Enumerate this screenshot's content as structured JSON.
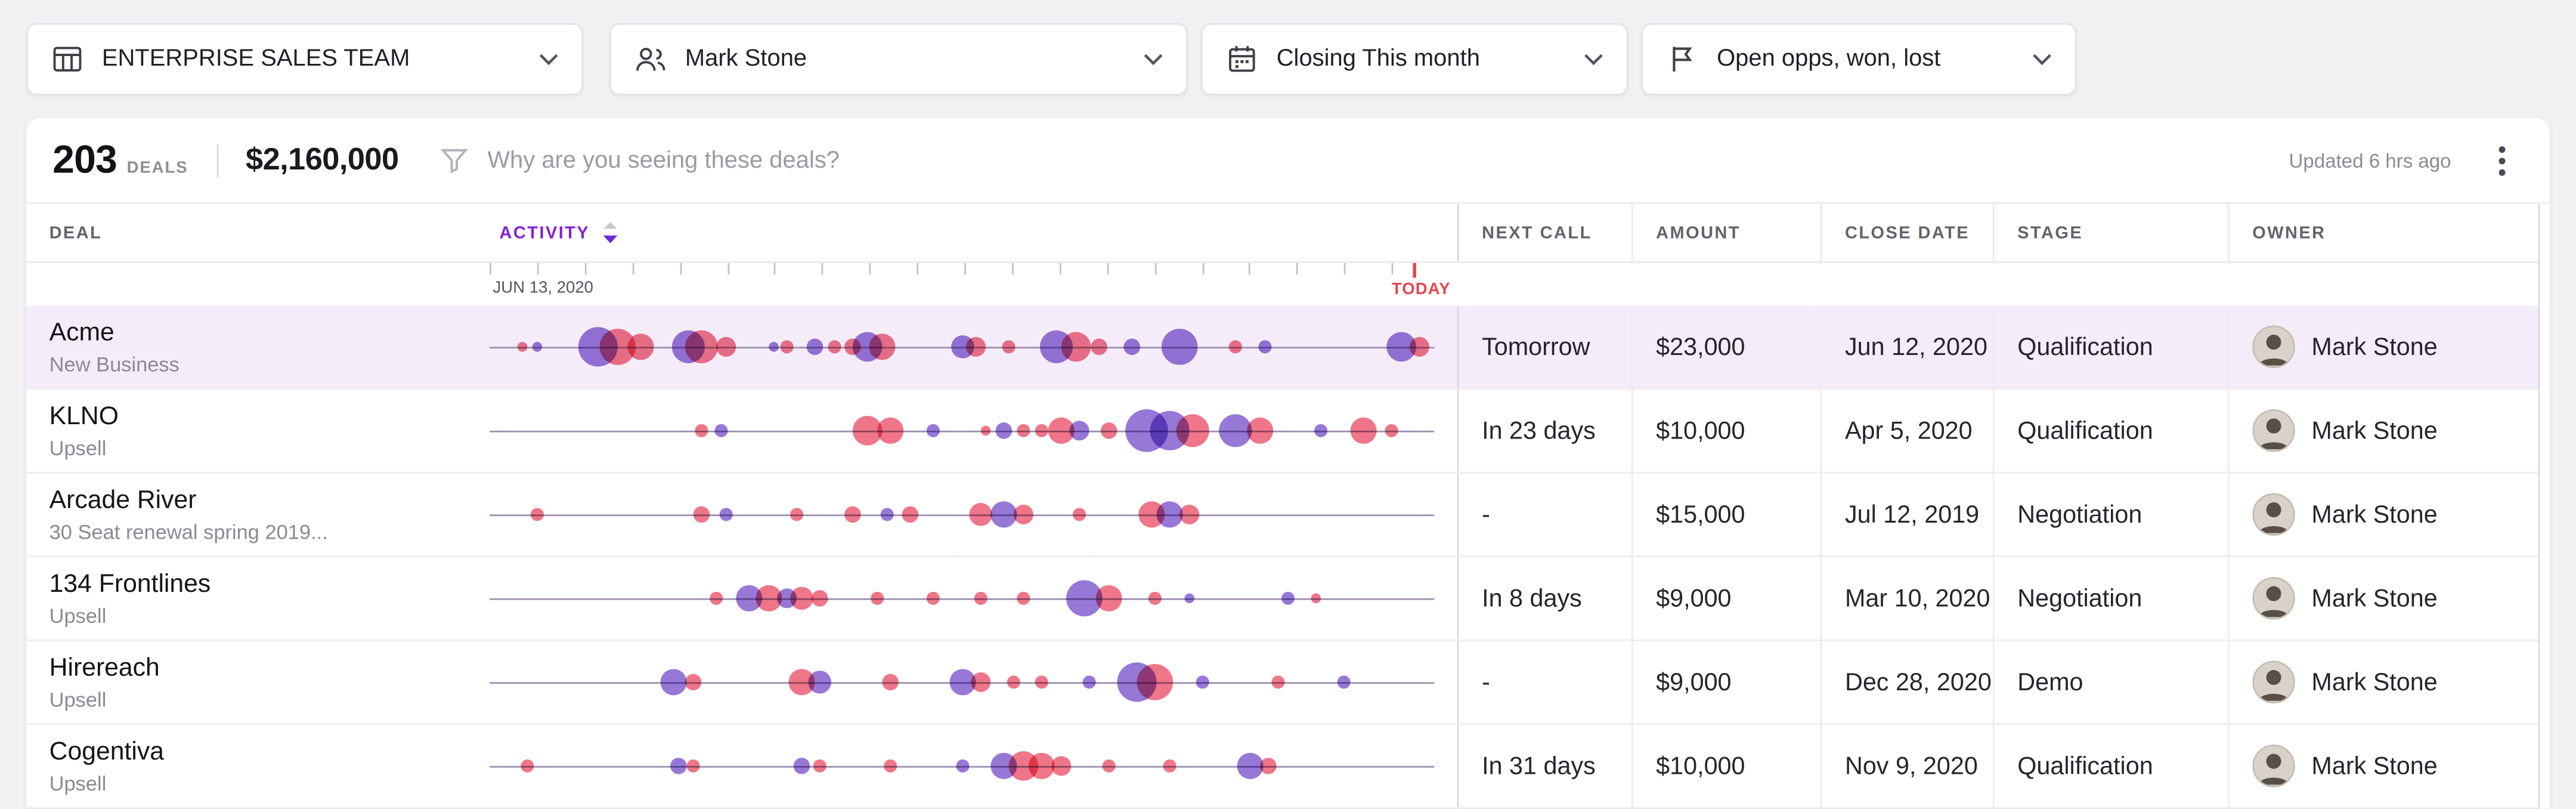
{
  "filters": [
    {
      "label": "ENTERPRISE SALES TEAM",
      "icon": "table-icon"
    },
    {
      "label": "Mark Stone",
      "icon": "people-icon"
    },
    {
      "label": "Closing This month",
      "icon": "calendar-icon"
    },
    {
      "label": "Open opps, won, lost",
      "icon": "flag-icon"
    }
  ],
  "summary": {
    "count": "203",
    "count_label": "Deals",
    "amount": "$2,160,000",
    "filter_hint": "Why are you seeing these deals?",
    "updated": "Updated 6 hrs ago"
  },
  "table": {
    "columns": [
      "DEAL",
      "ACTIVITY",
      "NEXT CALL",
      "AMOUNT",
      "CLOSE DATE",
      "STAGE",
      "OWNER"
    ],
    "axis": {
      "start_label": "JUN 13, 2020",
      "today_label": "TODAY",
      "tick_count": 20,
      "tick_span": 0.955,
      "today_fraction": 0.978
    },
    "rows": [
      {
        "deal": "Acme",
        "deal_sub": "New Business",
        "next_call": "Tomorrow",
        "amount": "$23,000",
        "close_date": "Jun 12, 2020",
        "stage": "Qualification",
        "owner": "Mark Stone",
        "selected": true,
        "bubbles": [
          [
            0.035,
            3,
            "r"
          ],
          [
            0.05,
            3,
            "p"
          ],
          [
            0.115,
            12,
            "p"
          ],
          [
            0.135,
            11,
            "r"
          ],
          [
            0.16,
            8,
            "r"
          ],
          [
            0.21,
            10,
            "p"
          ],
          [
            0.225,
            10,
            "r"
          ],
          [
            0.25,
            6,
            "r"
          ],
          [
            0.3,
            3,
            "p"
          ],
          [
            0.315,
            4,
            "r"
          ],
          [
            0.345,
            5,
            "p"
          ],
          [
            0.365,
            4,
            "r"
          ],
          [
            0.385,
            5,
            "r"
          ],
          [
            0.4,
            9,
            "p"
          ],
          [
            0.415,
            8,
            "r"
          ],
          [
            0.5,
            7,
            "p"
          ],
          [
            0.515,
            6,
            "r"
          ],
          [
            0.55,
            4,
            "r"
          ],
          [
            0.6,
            10,
            "p"
          ],
          [
            0.62,
            9,
            "r"
          ],
          [
            0.645,
            5,
            "r"
          ],
          [
            0.68,
            5,
            "p"
          ],
          [
            0.73,
            11,
            "p"
          ],
          [
            0.79,
            4,
            "r"
          ],
          [
            0.82,
            4,
            "p"
          ],
          [
            0.965,
            9,
            "p"
          ],
          [
            0.985,
            6,
            "r"
          ]
        ]
      },
      {
        "deal": "KLNO",
        "deal_sub": "Upsell",
        "next_call": "In 23 days",
        "amount": "$10,000",
        "close_date": "Apr 5, 2020",
        "stage": "Qualification",
        "owner": "Mark Stone",
        "selected": false,
        "bubbles": [
          [
            0.225,
            4,
            "r"
          ],
          [
            0.245,
            4,
            "p"
          ],
          [
            0.4,
            9,
            "r"
          ],
          [
            0.425,
            8,
            "r"
          ],
          [
            0.47,
            4,
            "p"
          ],
          [
            0.525,
            3,
            "r"
          ],
          [
            0.545,
            5,
            "p"
          ],
          [
            0.565,
            4,
            "r"
          ],
          [
            0.585,
            4,
            "r"
          ],
          [
            0.605,
            8,
            "r"
          ],
          [
            0.625,
            6,
            "p"
          ],
          [
            0.655,
            5,
            "r"
          ],
          [
            0.695,
            13,
            "p"
          ],
          [
            0.72,
            12,
            "p"
          ],
          [
            0.745,
            10,
            "r"
          ],
          [
            0.79,
            10,
            "p"
          ],
          [
            0.815,
            8,
            "r"
          ],
          [
            0.88,
            4,
            "p"
          ],
          [
            0.925,
            8,
            "r"
          ],
          [
            0.955,
            4,
            "r"
          ]
        ]
      },
      {
        "deal": "Arcade River",
        "deal_sub": "30 Seat renewal spring 2019...",
        "next_call": "-",
        "amount": "$15,000",
        "close_date": "Jul 12, 2019",
        "stage": "Negotiation",
        "owner": "Mark Stone",
        "selected": false,
        "bubbles": [
          [
            0.05,
            4,
            "r"
          ],
          [
            0.225,
            5,
            "r"
          ],
          [
            0.25,
            4,
            "p"
          ],
          [
            0.325,
            4,
            "r"
          ],
          [
            0.385,
            5,
            "r"
          ],
          [
            0.42,
            4,
            "p"
          ],
          [
            0.445,
            5,
            "r"
          ],
          [
            0.52,
            7,
            "r"
          ],
          [
            0.545,
            8,
            "p"
          ],
          [
            0.565,
            6,
            "r"
          ],
          [
            0.625,
            4,
            "r"
          ],
          [
            0.7,
            8,
            "r"
          ],
          [
            0.72,
            8,
            "p"
          ],
          [
            0.74,
            6,
            "r"
          ]
        ]
      },
      {
        "deal": "134 Frontlines",
        "deal_sub": "Upsell",
        "next_call": "In 8 days",
        "amount": "$9,000",
        "close_date": "Mar 10, 2020",
        "stage": "Negotiation",
        "owner": "Mark Stone",
        "selected": false,
        "bubbles": [
          [
            0.24,
            4,
            "r"
          ],
          [
            0.275,
            8,
            "p"
          ],
          [
            0.295,
            8,
            "r"
          ],
          [
            0.315,
            6,
            "p"
          ],
          [
            0.33,
            7,
            "r"
          ],
          [
            0.35,
            5,
            "r"
          ],
          [
            0.41,
            4,
            "r"
          ],
          [
            0.47,
            4,
            "r"
          ],
          [
            0.52,
            4,
            "r"
          ],
          [
            0.565,
            4,
            "r"
          ],
          [
            0.63,
            11,
            "p"
          ],
          [
            0.655,
            8,
            "r"
          ],
          [
            0.705,
            4,
            "r"
          ],
          [
            0.74,
            3,
            "p"
          ],
          [
            0.845,
            4,
            "p"
          ],
          [
            0.875,
            3,
            "r"
          ]
        ]
      },
      {
        "deal": "Hirereach",
        "deal_sub": "Upsell",
        "next_call": "-",
        "amount": "$9,000",
        "close_date": "Dec 28, 2020",
        "stage": "Demo",
        "owner": "Mark Stone",
        "selected": false,
        "bubbles": [
          [
            0.195,
            8,
            "p"
          ],
          [
            0.215,
            5,
            "r"
          ],
          [
            0.33,
            8,
            "r"
          ],
          [
            0.35,
            7,
            "p"
          ],
          [
            0.425,
            5,
            "r"
          ],
          [
            0.5,
            8,
            "p"
          ],
          [
            0.52,
            6,
            "r"
          ],
          [
            0.555,
            4,
            "r"
          ],
          [
            0.585,
            4,
            "r"
          ],
          [
            0.635,
            4,
            "p"
          ],
          [
            0.685,
            12,
            "p"
          ],
          [
            0.705,
            11,
            "r"
          ],
          [
            0.755,
            4,
            "p"
          ],
          [
            0.835,
            4,
            "r"
          ],
          [
            0.905,
            4,
            "p"
          ]
        ]
      },
      {
        "deal": "Cogentiva",
        "deal_sub": "Upsell",
        "next_call": "In 31 days",
        "amount": "$10,000",
        "close_date": "Nov 9, 2020",
        "stage": "Qualification",
        "owner": "Mark Stone",
        "selected": false,
        "bubbles": [
          [
            0.04,
            4,
            "r"
          ],
          [
            0.2,
            5,
            "p"
          ],
          [
            0.215,
            4,
            "r"
          ],
          [
            0.33,
            5,
            "p"
          ],
          [
            0.35,
            4,
            "r"
          ],
          [
            0.425,
            4,
            "r"
          ],
          [
            0.5,
            4,
            "p"
          ],
          [
            0.545,
            8,
            "p"
          ],
          [
            0.565,
            9,
            "r"
          ],
          [
            0.585,
            8,
            "r"
          ],
          [
            0.605,
            6,
            "r"
          ],
          [
            0.655,
            4,
            "r"
          ],
          [
            0.72,
            4,
            "r"
          ],
          [
            0.805,
            8,
            "p"
          ],
          [
            0.825,
            5,
            "r"
          ]
        ]
      }
    ]
  },
  "colors": {
    "bubble_red": "#ea4f66",
    "bubble_purple": "#7a52cc",
    "today_red": "#e0474d",
    "activity_header": "#8220d6",
    "selected_row": "#f5ecf9"
  }
}
